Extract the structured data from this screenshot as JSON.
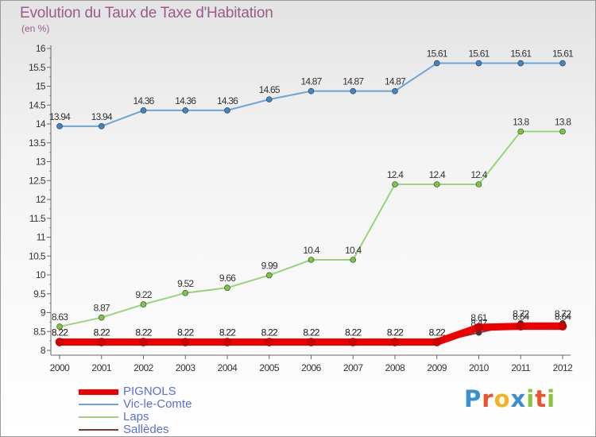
{
  "title": "Evolution du Taux de Taxe d'Habitation",
  "unit_label": "(en %)",
  "logo": {
    "letters": [
      "P",
      "r",
      "o",
      "x",
      "i",
      "t",
      "i"
    ],
    "colors": [
      "#3a8fd0",
      "#e8552d",
      "#f3b321",
      "#3a8fd0",
      "#8bc53f",
      "#e8552d",
      "#8bc53f"
    ]
  },
  "chart_data": {
    "type": "line",
    "title": "Evolution du Taux de Taxe d'Habitation",
    "ylabel": "(en %)",
    "categories": [
      "2000",
      "2001",
      "2002",
      "2003",
      "2004",
      "2005",
      "2006",
      "2007",
      "2008",
      "2009",
      "2010",
      "2011",
      "2012"
    ],
    "ylim": [
      8,
      16
    ],
    "yticks": [
      "8",
      "8.5",
      "9",
      "9.5",
      "10",
      "10.5",
      "11",
      "11.5",
      "12",
      "12.5",
      "13",
      "13.5",
      "14",
      "14.5",
      "15",
      "15.5",
      "16"
    ],
    "grid": false,
    "legend_position": "bottom-left",
    "series": [
      {
        "name": "Sallèdes",
        "color": "#7a3a3a",
        "marker": "#5a2a2a",
        "values": [
          8.22,
          8.22,
          8.22,
          8.22,
          8.22,
          8.22,
          8.22,
          8.22,
          8.22,
          8.22,
          8.47,
          8.72,
          8.72
        ],
        "labels": [
          "8.22",
          "8.22",
          "8.22",
          "8.22",
          "8.22",
          "8.22",
          "8.22",
          "8.22",
          "8.22",
          "8.22",
          "8.47",
          "8.72",
          "8.72"
        ]
      },
      {
        "name": "Laps",
        "color": "#9ad47a",
        "marker": "#7cc444",
        "values": [
          8.63,
          8.87,
          9.22,
          9.52,
          9.66,
          9.99,
          10.4,
          10.4,
          12.4,
          12.4,
          12.4,
          13.8,
          13.8
        ],
        "labels": [
          "8.63",
          "8.87",
          "9.22",
          "9.52",
          "9.66",
          "9.99",
          "10.4",
          "10.4",
          "12.4",
          "12.4",
          "12.4",
          "13.8",
          "13.8"
        ]
      },
      {
        "name": "Vic-le-Comte",
        "color": "#6ea4d6",
        "marker": "#3f86c6",
        "values": [
          13.94,
          13.94,
          14.36,
          14.36,
          14.36,
          14.65,
          14.87,
          14.87,
          14.87,
          15.61,
          15.61,
          15.61,
          15.61
        ],
        "labels": [
          "13.94",
          "13.94",
          "14.36",
          "14.36",
          "14.36",
          "14.65",
          "14.87",
          "14.87",
          "14.87",
          "15.61",
          "15.61",
          "15.61",
          "15.61"
        ]
      },
      {
        "name": "PIGNOLS",
        "color": "#ee0000",
        "marker": "#cc0000",
        "values": [
          8.22,
          8.22,
          8.22,
          8.22,
          8.22,
          8.22,
          8.22,
          8.22,
          8.22,
          8.22,
          8.61,
          8.64,
          8.64
        ],
        "labels": [
          "8.22",
          "8.22",
          "8.22",
          "8.22",
          "8.22",
          "8.22",
          "8.22",
          "8.22",
          "8.22",
          "8.22",
          "8.61",
          "8.64",
          "8.64"
        ]
      }
    ],
    "legend_order": [
      "PIGNOLS",
      "Vic-le-Comte",
      "Laps",
      "Sallèdes"
    ]
  }
}
